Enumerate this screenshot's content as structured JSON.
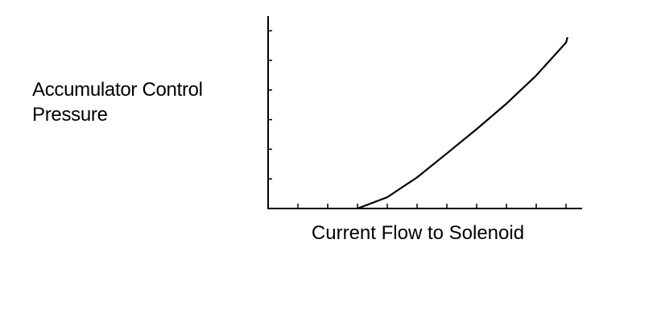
{
  "chart_data": {
    "type": "line",
    "x_label": "Current Flow to Solenoid",
    "y_label": "Accumulator Control Pressure",
    "x": [
      3,
      4,
      5,
      6,
      7,
      8,
      9,
      10,
      10.05
    ],
    "series": [
      {
        "color": "#000000",
        "values": [
          0,
          0.38,
          1.05,
          1.86,
          2.68,
          3.54,
          4.49,
          5.6,
          5.78
        ]
      }
    ],
    "xlim": [
      0,
      10.5
    ],
    "ylim": [
      0,
      6.5
    ],
    "xticks": [
      1,
      2,
      3,
      4,
      5,
      6,
      7,
      8,
      9,
      10
    ],
    "yticks": [
      1,
      2,
      3,
      4,
      5,
      6
    ]
  }
}
